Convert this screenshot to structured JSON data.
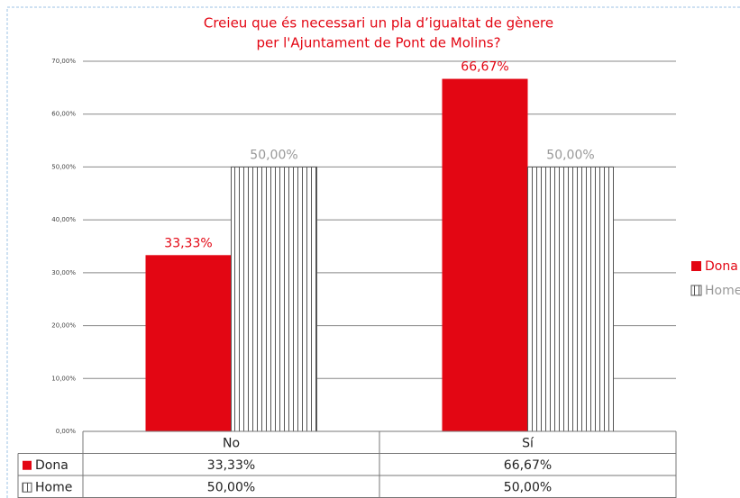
{
  "chart_data": {
    "type": "bar",
    "title": [
      "Creieu que és necessari un pla d’igualtat de gènere",
      "per l'Ajuntament de Pont de Molins?"
    ],
    "categories": [
      "No",
      "Sí"
    ],
    "series": [
      {
        "name": "Dona",
        "color": "#e30613",
        "values": [
          33.33,
          66.67
        ],
        "value_labels": [
          "33,33%",
          "66,67%"
        ]
      },
      {
        "name": "Home",
        "color": "#ffffff",
        "pattern": "vertical-lines",
        "values": [
          50,
          50
        ],
        "value_labels": [
          "50,00%",
          "50,00%"
        ]
      }
    ],
    "ylim": [
      0,
      70
    ],
    "yticks": [
      {
        "value": 0,
        "label": "0,00%"
      },
      {
        "value": 10,
        "label": "10,00%"
      },
      {
        "value": 20,
        "label": "20,00%"
      },
      {
        "value": 30,
        "label": "30,00%"
      },
      {
        "value": 40,
        "label": "40,00%"
      },
      {
        "value": 50,
        "label": "50,00%"
      },
      {
        "value": 60,
        "label": "60,00%"
      },
      {
        "value": 70,
        "label": "70,00%"
      }
    ],
    "grid": true,
    "legend": "right",
    "data_table": true
  }
}
